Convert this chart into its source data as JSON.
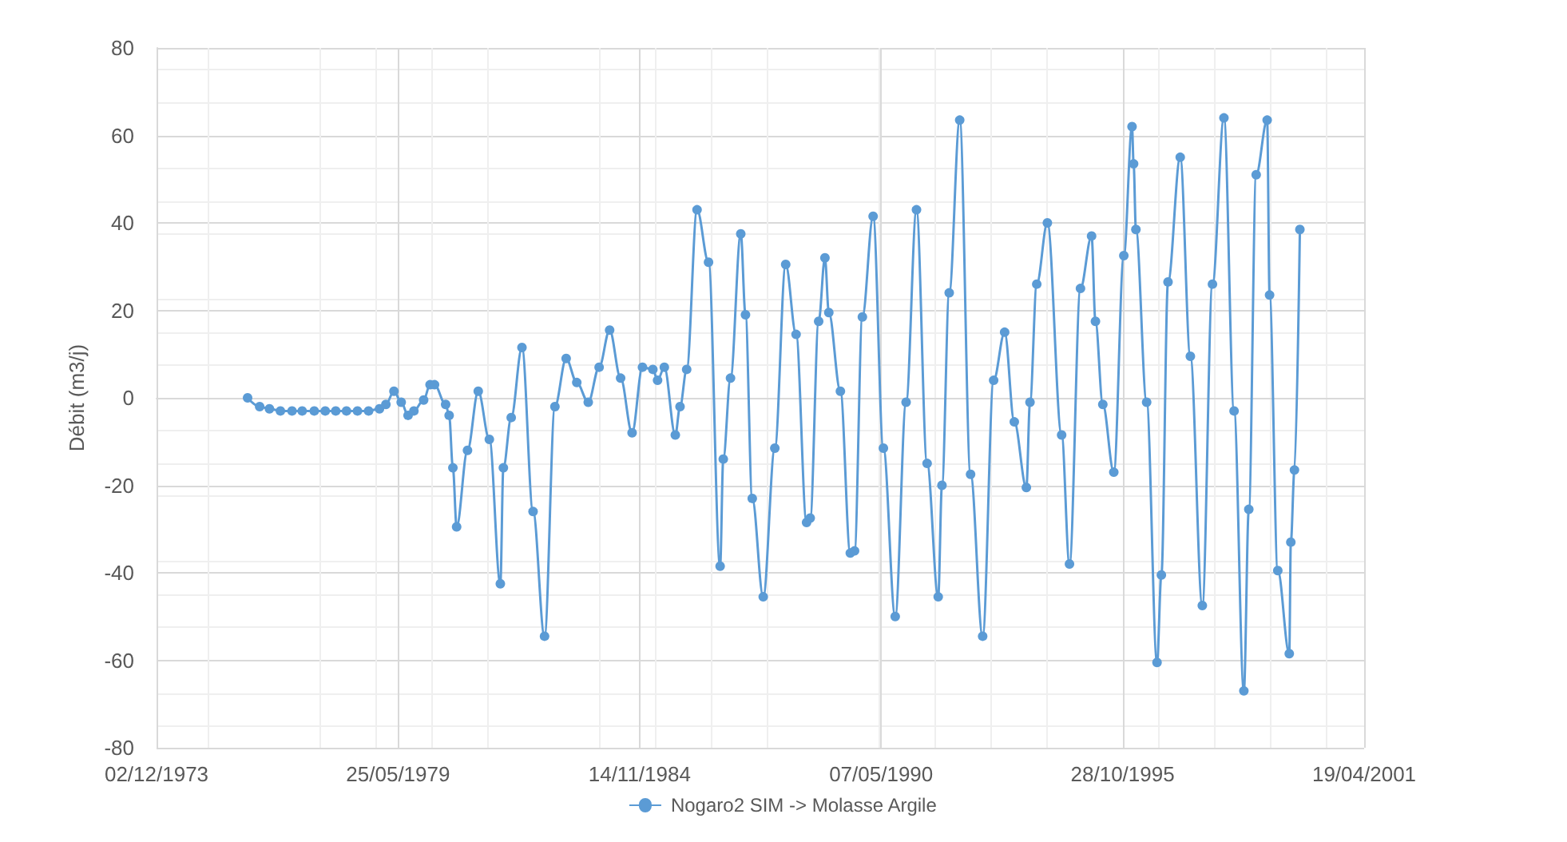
{
  "chart_data": {
    "type": "line",
    "ylabel": "Débit (m3/j)",
    "xlim": [
      "1973-12-02",
      "2001-04-19"
    ],
    "xticks": [
      {
        "value": "1973-12-02",
        "label": "02/12/1973"
      },
      {
        "value": "1979-05-25",
        "label": "25/05/1979"
      },
      {
        "value": "1984-11-14",
        "label": "14/11/1984"
      },
      {
        "value": "1990-05-07",
        "label": "07/05/1990"
      },
      {
        "value": "1995-10-28",
        "label": "28/10/1995"
      },
      {
        "value": "2001-04-19",
        "label": "19/04/2001"
      }
    ],
    "ylim": [
      -80,
      80
    ],
    "yticks": [
      -80,
      -60,
      -40,
      -20,
      0,
      20,
      40,
      60,
      80
    ],
    "grid": true,
    "legend": "bottom",
    "marker": "circle",
    "line_style": "solid",
    "series": [
      {
        "name": "Nogaro2 SIM -> Molasse Argile",
        "color": "#5b9bd5",
        "x": [
          "1975-12-26",
          "1976-04-04",
          "1976-06-24",
          "1976-09-23",
          "1976-12-28",
          "1977-03-22",
          "1977-06-30",
          "1977-09-29",
          "1977-12-25",
          "1978-03-24",
          "1978-06-23",
          "1978-09-23",
          "1978-12-22",
          "1979-02-13",
          "1979-04-21",
          "1979-06-20",
          "1979-08-16",
          "1979-10-03",
          "1979-12-23",
          "1980-02-14",
          "1980-03-22",
          "1980-06-22",
          "1980-07-21",
          "1980-08-21",
          "1980-09-21",
          "1980-12-20",
          "1981-03-19",
          "1981-06-19",
          "1981-09-18",
          "1981-10-13",
          "1981-12-17",
          "1982-03-16",
          "1982-06-16",
          "1982-09-19",
          "1982-12-14",
          "1983-03-17",
          "1983-06-13",
          "1983-09-16",
          "1983-12-15",
          "1984-03-11",
          "1984-06-10",
          "1984-09-13",
          "1984-12-08",
          "1985-03-04",
          "1985-04-12",
          "1985-06-07",
          "1985-09-06",
          "1985-10-15",
          "1985-12-09",
          "1986-03-05",
          "1986-06-08",
          "1986-09-12",
          "1986-10-08",
          "1986-12-07",
          "1987-03-02",
          "1987-04-10",
          "1987-06-05",
          "1987-09-04",
          "1987-12-09",
          "1988-03-08",
          "1988-06-02",
          "1988-08-28",
          "1988-09-27",
          "1988-12-06",
          "1989-01-27",
          "1989-02-28",
          "1989-06-04",
          "1989-08-25",
          "1989-09-29",
          "1989-12-03",
          "1990-03-02",
          "1990-05-26",
          "1990-09-01",
          "1990-11-30",
          "1991-02-24",
          "1991-05-23",
          "1991-08-23",
          "1991-09-23",
          "1991-11-22",
          "1992-02-17",
          "1992-05-17",
          "1992-08-25",
          "1992-11-24",
          "1993-02-23",
          "1993-05-14",
          "1993-08-22",
          "1993-09-21",
          "1993-11-16",
          "1994-02-12",
          "1994-06-10",
          "1994-08-14",
          "1994-11-13",
          "1995-02-13",
          "1995-03-17",
          "1995-05-17",
          "1995-08-16",
          "1995-11-07",
          "1996-01-14",
          "1996-01-27",
          "1996-02-15",
          "1996-05-14",
          "1996-08-08",
          "1996-09-13",
          "1996-11-07",
          "1997-02-16",
          "1997-05-11",
          "1997-08-18",
          "1997-11-10",
          "1998-02-13",
          "1998-05-08",
          "1998-07-28",
          "1998-09-07",
          "1998-11-07",
          "1999-02-06",
          "1999-02-26",
          "1999-05-05",
          "1999-08-08",
          "1999-08-21",
          "1999-09-20",
          "1999-11-04"
        ],
        "values": [
          0,
          -2,
          -2.5,
          -3,
          -3,
          -3,
          -3,
          -3,
          -3,
          -3,
          -3,
          -3,
          -2.5,
          -1.5,
          1.5,
          -1,
          -4,
          -3,
          -0.5,
          3,
          3,
          -1.5,
          -4,
          -16,
          -29.5,
          -12,
          1.5,
          -9.5,
          -42.5,
          -16,
          -4.5,
          11.5,
          -26,
          -54.5,
          -2,
          9,
          3.5,
          -1,
          7,
          15.5,
          4.5,
          -8,
          7,
          6.5,
          4,
          7,
          -8.5,
          -2,
          6.5,
          43,
          31,
          -38.5,
          -14,
          4.5,
          37.5,
          19,
          -23,
          -45.5,
          -11.5,
          30.5,
          14.5,
          -28.5,
          -27.5,
          17.5,
          32,
          19.5,
          1.5,
          -35.5,
          -35,
          18.5,
          41.5,
          -11.5,
          -50,
          -1,
          43,
          -15,
          -45.5,
          -20,
          24,
          63.5,
          -17.5,
          -54.5,
          4,
          15,
          -5.5,
          -20.5,
          -1,
          26,
          40,
          -8.5,
          -38,
          25,
          37,
          17.5,
          -1.5,
          -17,
          32.5,
          62,
          53.5,
          38.5,
          -1,
          -60.5,
          -40.5,
          26.5,
          55,
          9.5,
          -47.5,
          26,
          64,
          -3,
          -67,
          -25.5,
          51,
          63.5,
          23.5,
          -39.5,
          -58.5,
          -33,
          -16.5,
          38.5
        ]
      }
    ]
  }
}
